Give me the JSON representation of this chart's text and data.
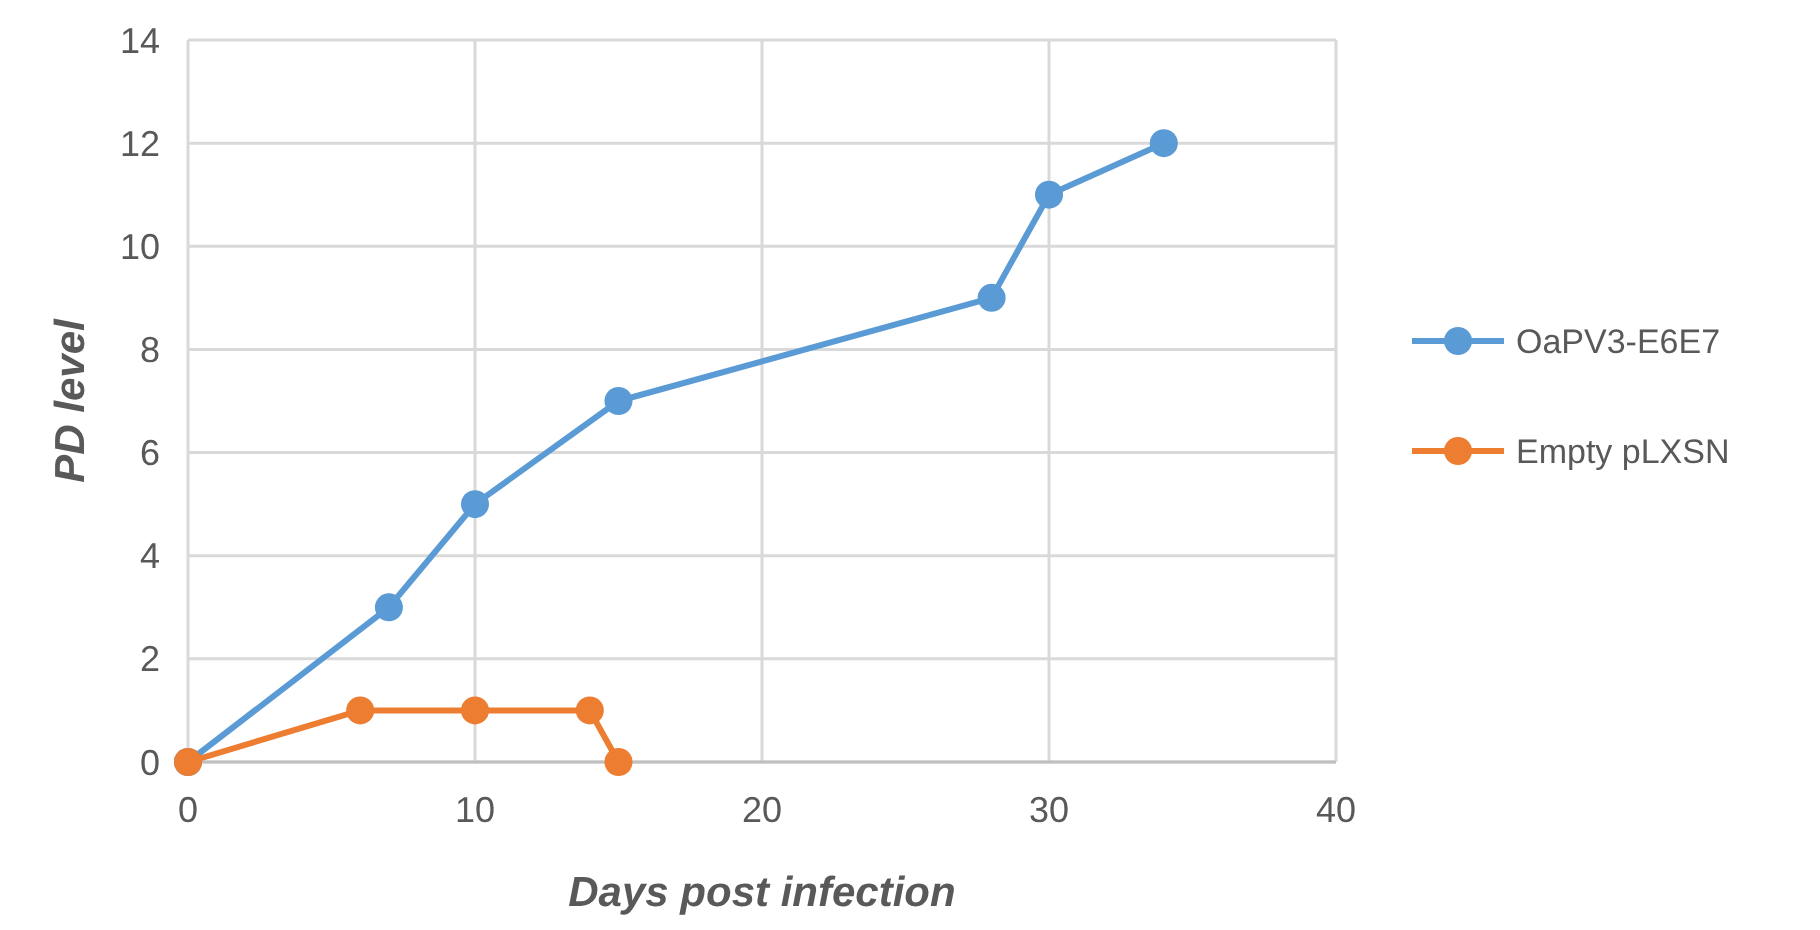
{
  "chart_data": {
    "type": "line",
    "xlabel": "Days post infection",
    "ylabel": "PD level",
    "xlim": [
      0,
      40
    ],
    "xticks": [
      0,
      10,
      20,
      30,
      40
    ],
    "ylim": [
      0,
      14
    ],
    "yticks": [
      0,
      2,
      4,
      6,
      8,
      10,
      12,
      14
    ],
    "grid": true,
    "legend": "right",
    "marker": "circle",
    "line_style": "solid",
    "series": [
      {
        "name": "OaPV3-E6E7",
        "color": "#5b9bd5",
        "x": [
          0,
          7,
          10,
          15,
          28,
          30,
          34
        ],
        "values": [
          0,
          3,
          5,
          7,
          9,
          11,
          12
        ]
      },
      {
        "name": "Empty pLXSN",
        "color": "#ed7d31",
        "x": [
          0,
          6,
          10,
          14,
          15
        ],
        "values": [
          0,
          1,
          1,
          1,
          0
        ]
      }
    ]
  }
}
